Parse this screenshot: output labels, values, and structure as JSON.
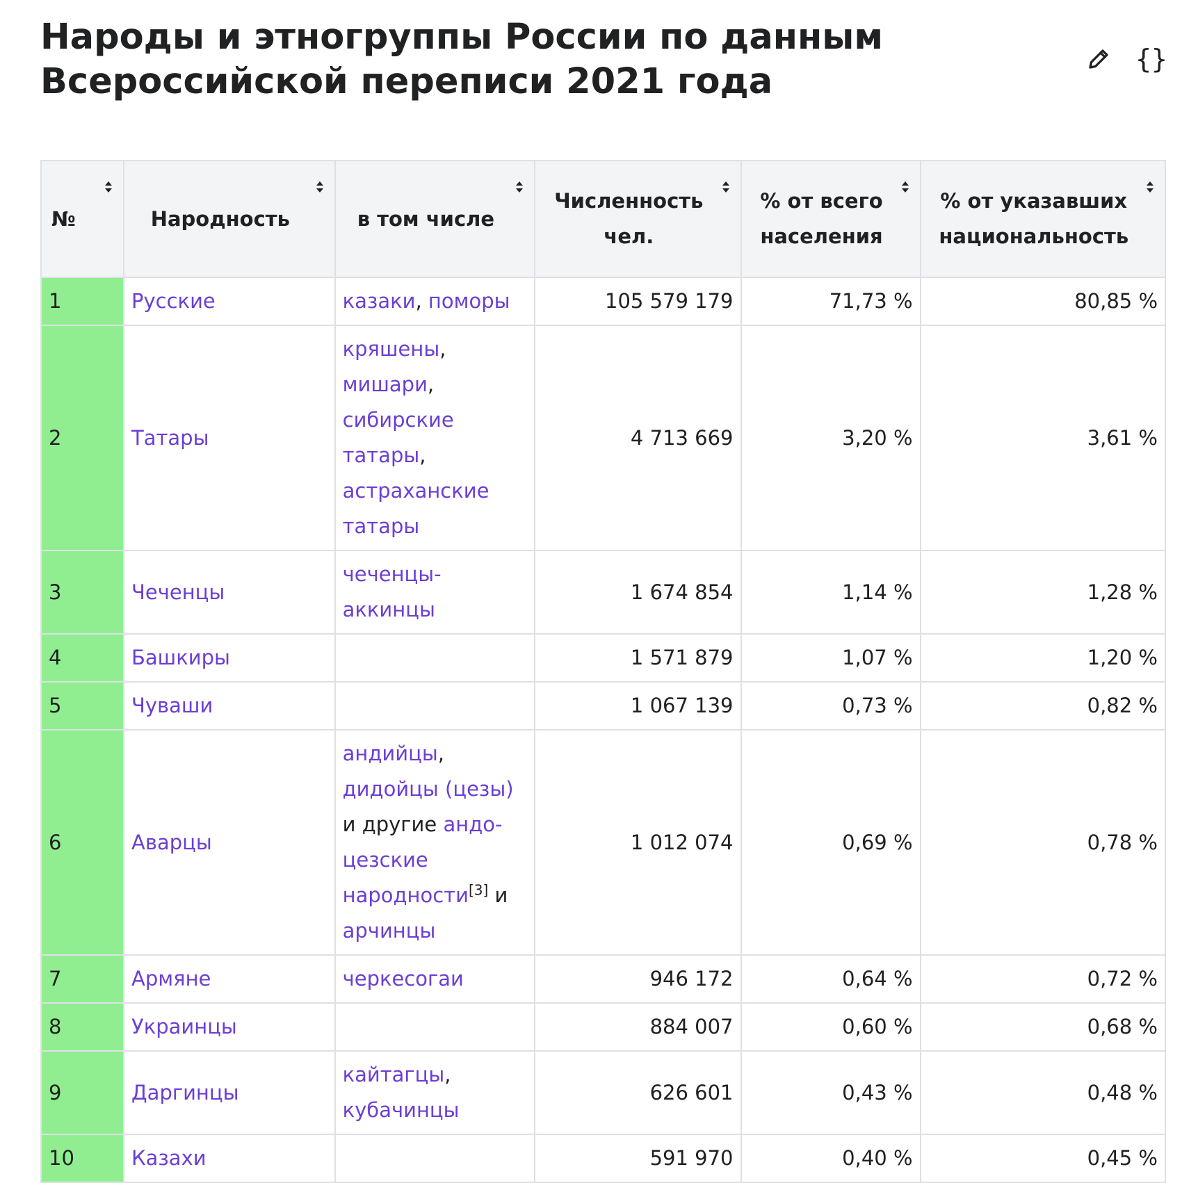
{
  "title": "Народы и этногруппы России по данным Всероссийской переписи 2021 года",
  "toolbar": {
    "edit_icon": "pencil-icon",
    "json_icon": "braces-icon",
    "json_label": "{}"
  },
  "headers": {
    "num": "№",
    "nation": "Народность",
    "subgroups": "в том числе",
    "count": "Численность чел.",
    "pct_total": "% от всего населения",
    "pct_declared": "% от указавших национальность"
  },
  "rows": [
    {
      "num": "1",
      "nation": "Русские",
      "sub": [
        {
          "t": "казаки",
          "link": true
        },
        {
          "t": ", "
        },
        {
          "t": "поморы",
          "link": true
        }
      ],
      "count": "105 579 179",
      "pct_total": "71,73 %",
      "pct_declared": "80,85 %"
    },
    {
      "num": "2",
      "nation": "Татары",
      "sub": [
        {
          "t": "кряшены",
          "link": true
        },
        {
          "t": ", "
        },
        {
          "t": "мишари",
          "link": true
        },
        {
          "t": ", "
        },
        {
          "t": "сибирские татары",
          "link": true
        },
        {
          "t": ", "
        },
        {
          "t": "астраханские татары",
          "link": true
        }
      ],
      "count": "4 713 669",
      "pct_total": "3,20 %",
      "pct_declared": "3,61 %"
    },
    {
      "num": "3",
      "nation": "Чеченцы",
      "sub": [
        {
          "t": "чеченцы-аккинцы",
          "link": true
        }
      ],
      "count": "1 674 854",
      "pct_total": "1,14 %",
      "pct_declared": "1,28 %"
    },
    {
      "num": "4",
      "nation": "Башкиры",
      "sub": [],
      "count": "1 571 879",
      "pct_total": "1,07 %",
      "pct_declared": "1,20 %"
    },
    {
      "num": "5",
      "nation": "Чуваши",
      "sub": [],
      "count": "1 067 139",
      "pct_total": "0,73 %",
      "pct_declared": "0,82 %"
    },
    {
      "num": "6",
      "nation": "Аварцы",
      "sub": [
        {
          "t": "андийцы",
          "link": true
        },
        {
          "t": ", "
        },
        {
          "t": "дидойцы (цезы)",
          "link": true
        },
        {
          "t": " и другие "
        },
        {
          "t": "андо-цезские народности",
          "link": true
        },
        {
          "t": "[3]",
          "ref": true
        },
        {
          "t": " и "
        },
        {
          "t": "арчинцы",
          "link": true
        }
      ],
      "count": "1 012 074",
      "pct_total": "0,69 %",
      "pct_declared": "0,78 %"
    },
    {
      "num": "7",
      "nation": "Армяне",
      "sub": [
        {
          "t": "черкесогаи",
          "link": true
        }
      ],
      "count": "946 172",
      "pct_total": "0,64 %",
      "pct_declared": "0,72 %"
    },
    {
      "num": "8",
      "nation": "Украинцы",
      "sub": [],
      "count": "884 007",
      "pct_total": "0,60 %",
      "pct_declared": "0,68 %"
    },
    {
      "num": "9",
      "nation": "Даргинцы",
      "sub": [
        {
          "t": "кайтагцы",
          "link": true
        },
        {
          "t": ", "
        },
        {
          "t": "кубачинцы",
          "link": true
        }
      ],
      "count": "626 601",
      "pct_total": "0,43 %",
      "pct_declared": "0,48 %"
    },
    {
      "num": "10",
      "nation": "Казахи",
      "sub": [],
      "count": "591 970",
      "pct_total": "0,40 %",
      "pct_declared": "0,45 %"
    }
  ],
  "colors": {
    "rank_bg": "#90ee90",
    "link": "#6b3fd4",
    "header_bg": "#f3f4f6",
    "border": "#dde1e6"
  }
}
